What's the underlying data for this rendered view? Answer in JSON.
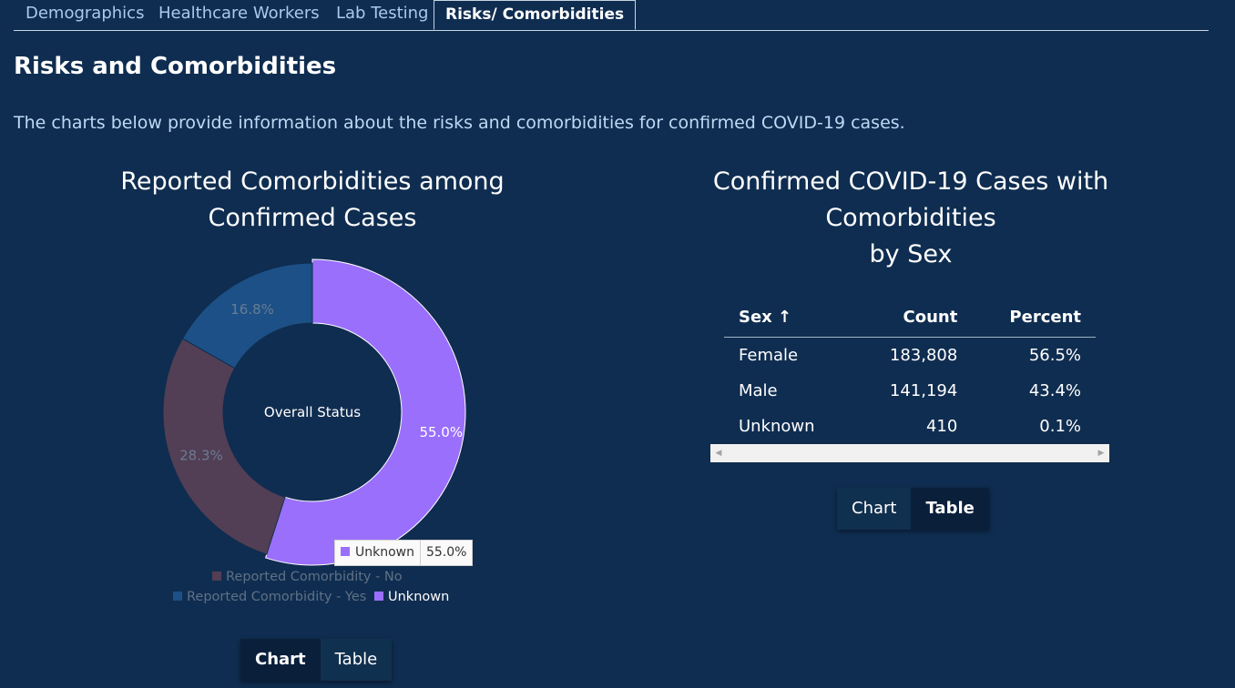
{
  "tabs": [
    {
      "label": "Demographics"
    },
    {
      "label": "Healthcare Workers"
    },
    {
      "label": "Lab Testing"
    },
    {
      "label": "Risks/ Comorbidities"
    }
  ],
  "page": {
    "title": "Risks and Comorbidities",
    "intro": "The charts below provide information about the risks and comorbidities for confirmed COVID-19 cases."
  },
  "chart_data": [
    {
      "type": "pie",
      "variant": "donut",
      "title_lines": [
        "Reported Comorbidities among",
        "Confirmed Cases"
      ],
      "center_label": "Overall Status",
      "categories": [
        "Unknown",
        "Reported Comorbidity - No",
        "Reported Comorbidity - Yes"
      ],
      "values": [
        55.0,
        28.3,
        16.8
      ],
      "value_labels": [
        "55.0%",
        "28.3%",
        "16.8%"
      ],
      "colors": [
        "#9a6ffb",
        "#523e55",
        "#1c5086"
      ],
      "highlighted": "Unknown",
      "legend": {
        "placement": "bottom"
      },
      "tooltip": {
        "label": "Unknown",
        "value": "55.0%"
      },
      "toggle": {
        "options": [
          "Chart",
          "Table"
        ],
        "selected": "Chart"
      }
    },
    {
      "type": "table",
      "title_lines": [
        "Confirmed COVID-19 Cases with",
        "Comorbidities",
        "by Sex"
      ],
      "columns": [
        "Sex ↑",
        "Count",
        "Percent"
      ],
      "rows": [
        [
          "Female",
          "183,808",
          "56.5%"
        ],
        [
          "Male",
          "141,194",
          "43.4%"
        ],
        [
          "Unknown",
          "410",
          "0.1%"
        ]
      ],
      "toggle": {
        "options": [
          "Chart",
          "Table"
        ],
        "selected": "Table"
      }
    }
  ]
}
